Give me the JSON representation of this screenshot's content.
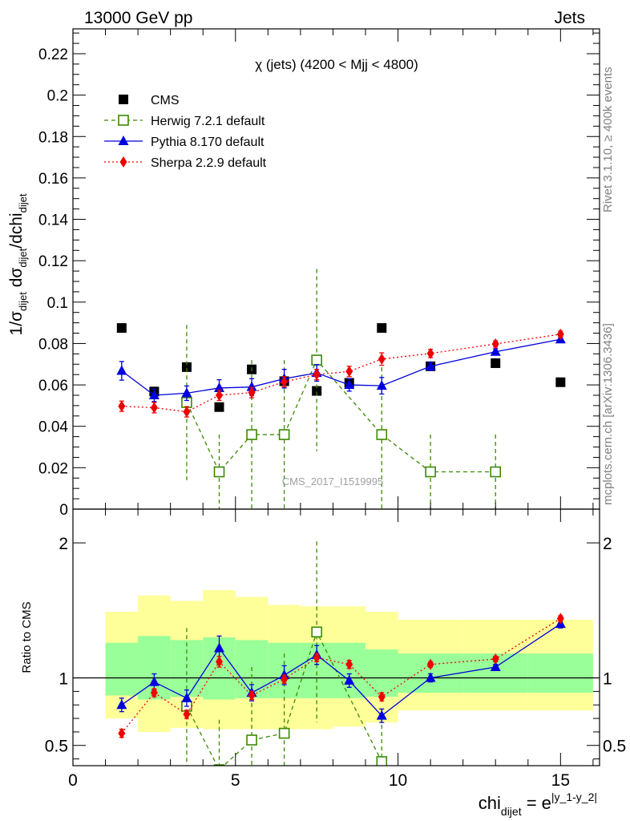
{
  "header": {
    "left": "13000 GeV pp",
    "right": "Jets"
  },
  "side_labels": {
    "rivet": "Rivet 3.1.10, ≥ 400k events",
    "mcplots": "mcplots.cern.ch [arXiv:1306.3436]"
  },
  "watermark": "CMS_2017_I1519995",
  "colors": {
    "cms": "#000000",
    "herwig": "#3a8a00",
    "pythia": "#0000dd",
    "sherpa": "#ee0000",
    "band_inner": "#99ff99",
    "band_outer": "#ffff99"
  },
  "chart_data": [
    {
      "type": "line",
      "title": "χ (jets) (4200 < Mjj < 4800)",
      "ylabel": {
        "main": "1/σ",
        "sub1": "dijet",
        "mid": " dσ",
        "sub2": "dijet",
        "mid2": "/dchi",
        "sub3": "dijet"
      },
      "xlim": [
        0,
        16.2
      ],
      "ylim": [
        0,
        0.232
      ],
      "yticks": [
        0,
        0.02,
        0.04,
        0.06,
        0.08,
        0.1,
        0.12,
        0.14,
        0.16,
        0.18,
        0.2,
        0.22
      ],
      "ytick_labels": [
        "0",
        "0.02",
        "0.04",
        "0.06",
        "0.08",
        "0.1",
        "0.12",
        "0.14",
        "0.16",
        "0.18",
        "0.2",
        "0.22"
      ],
      "series": [
        {
          "name": "CMS",
          "key": "cms",
          "marker": "square",
          "x": [
            1.5,
            2.5,
            3.5,
            4.5,
            5.5,
            6.5,
            7.5,
            8.5,
            9.5,
            11,
            13,
            15
          ],
          "y": [
            0.0875,
            0.0568,
            0.0686,
            0.0493,
            0.0675,
            0.0618,
            0.0571,
            0.061,
            0.0875,
            0.069,
            0.0705,
            0.0613
          ]
        },
        {
          "name": "Herwig 7.2.1 default",
          "key": "herwig",
          "marker": "open-square",
          "x": [
            3.5,
            4.5,
            5.5,
            6.5,
            7.5,
            9.5,
            11,
            13
          ],
          "y": [
            0.0515,
            0.018,
            0.036,
            0.036,
            0.072,
            0.036,
            0.018,
            0.018
          ],
          "err": [
            0.0375,
            0.018,
            0.036,
            0.036,
            0.044,
            0.036,
            0.018,
            0.018
          ]
        },
        {
          "name": "Pythia 8.170 default",
          "key": "pythia",
          "marker": "triangle",
          "x": [
            1.5,
            2.5,
            3.5,
            4.5,
            5.5,
            6.5,
            7.5,
            8.5,
            9.5,
            11,
            13,
            15
          ],
          "y": [
            0.0668,
            0.055,
            0.056,
            0.0585,
            0.059,
            0.063,
            0.0658,
            0.06,
            0.0596,
            0.069,
            0.076,
            0.082
          ],
          "err": [
            0.0045,
            0.003,
            0.0035,
            0.004,
            0.004,
            0.0045,
            0.004,
            0.003,
            0.004,
            0.002,
            0.0015,
            0.0015
          ]
        },
        {
          "name": "Sherpa 2.2.9 default",
          "key": "sherpa",
          "marker": "diamond",
          "x": [
            1.5,
            2.5,
            3.5,
            4.5,
            5.5,
            6.5,
            7.5,
            8.5,
            9.5,
            11,
            13,
            15
          ],
          "y": [
            0.0497,
            0.049,
            0.047,
            0.055,
            0.0563,
            0.0615,
            0.065,
            0.0665,
            0.0725,
            0.0752,
            0.0798,
            0.0845
          ],
          "err": [
            0.0025,
            0.0025,
            0.0025,
            0.0025,
            0.0025,
            0.0025,
            0.0025,
            0.0025,
            0.003,
            0.002,
            0.0015,
            0.0015
          ]
        }
      ]
    },
    {
      "type": "line",
      "ylabel": "Ratio to CMS",
      "xlabel": {
        "main": "chi",
        "sub": "dijet",
        "rest": " = e",
        "sup": "|y_1-y_2|"
      },
      "xlim": [
        0,
        16.2
      ],
      "ylim": [
        0.35,
        2.25
      ],
      "xticks": [
        0,
        5,
        10,
        15
      ],
      "xtick_labels": [
        "0",
        "5",
        "10",
        "15"
      ],
      "yticks": [
        0.5,
        1,
        2
      ],
      "ytick_labels": [
        "0.5",
        "1",
        "2"
      ],
      "reference_line": 1,
      "bands": {
        "edges": [
          1,
          2,
          3,
          4,
          5,
          6,
          7,
          8,
          9,
          10,
          12,
          14,
          16
        ],
        "inner_lo": [
          0.87,
          0.84,
          0.86,
          0.84,
          0.85,
          0.85,
          0.85,
          0.85,
          0.86,
          0.89,
          0.89,
          0.89
        ],
        "inner_hi": [
          1.26,
          1.31,
          1.28,
          1.3,
          1.28,
          1.26,
          1.26,
          1.26,
          1.21,
          1.18,
          1.18,
          1.18
        ],
        "outer_lo": [
          0.7,
          0.6,
          0.63,
          0.62,
          0.62,
          0.62,
          0.62,
          0.64,
          0.67,
          0.76,
          0.76,
          0.76
        ],
        "outer_hi": [
          1.49,
          1.61,
          1.57,
          1.65,
          1.6,
          1.54,
          1.53,
          1.53,
          1.49,
          1.43,
          1.43,
          1.43
        ]
      },
      "series": [
        {
          "name": "Herwig 7.2.1 default",
          "key": "herwig",
          "marker": "open-square",
          "x": [
            3.5,
            4.5,
            5.5,
            6.5,
            7.5,
            9.5
          ],
          "y": [
            0.79,
            0.32,
            0.54,
            0.59,
            1.34,
            0.38
          ],
          "err": [
            0.58,
            0.37,
            0.54,
            0.59,
            0.67,
            0.38
          ]
        },
        {
          "name": "Pythia 8.170 default",
          "key": "pythia",
          "marker": "triangle",
          "x": [
            1.5,
            2.5,
            3.5,
            4.5,
            5.5,
            6.5,
            7.5,
            8.5,
            9.5,
            11,
            13,
            15
          ],
          "y": [
            0.8,
            0.97,
            0.85,
            1.22,
            0.89,
            1.02,
            1.17,
            0.98,
            0.72,
            1.0,
            1.08,
            1.4
          ],
          "err": [
            0.05,
            0.06,
            0.06,
            0.09,
            0.06,
            0.07,
            0.07,
            0.05,
            0.05,
            0.03,
            0.02,
            0.03
          ]
        },
        {
          "name": "Sherpa 2.2.9 default",
          "key": "sherpa",
          "marker": "diamond",
          "x": [
            1.5,
            2.5,
            3.5,
            4.5,
            5.5,
            6.5,
            7.5,
            8.5,
            9.5,
            11,
            13,
            15
          ],
          "y": [
            0.59,
            0.89,
            0.73,
            1.12,
            0.87,
            0.99,
            1.15,
            1.1,
            0.86,
            1.1,
            1.14,
            1.44
          ],
          "err": [
            0.03,
            0.03,
            0.03,
            0.04,
            0.03,
            0.03,
            0.03,
            0.03,
            0.03,
            0.02,
            0.02,
            0.02
          ]
        }
      ]
    }
  ]
}
